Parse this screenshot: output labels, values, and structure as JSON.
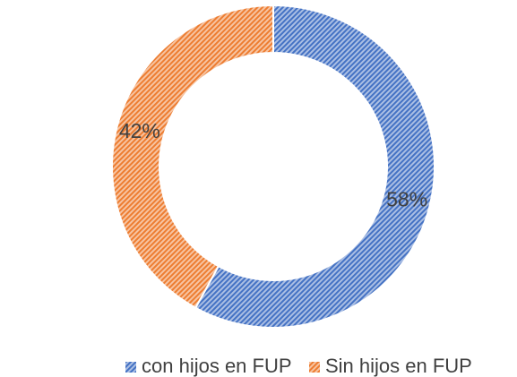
{
  "chart_data": {
    "type": "donut",
    "categories": [
      "con hijos en FUP",
      "Sin hijos en FUP"
    ],
    "values": [
      58,
      42
    ],
    "value_labels": [
      "58%",
      "42%"
    ],
    "colors": [
      "#4472c4",
      "#ed7d31"
    ],
    "legend": "bottom"
  }
}
